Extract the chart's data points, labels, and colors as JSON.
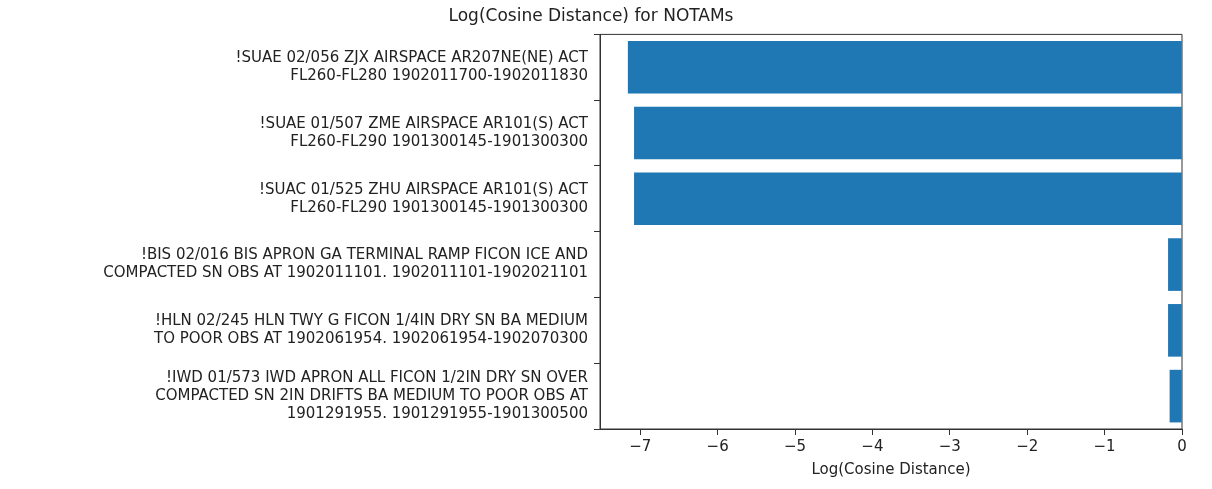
{
  "chart_data": {
    "type": "bar",
    "orientation": "horizontal",
    "title": "Log(Cosine Distance) for NOTAMs",
    "xlabel": "Log(Cosine Distance)",
    "categories": [
      "!SUAE 02/056 ZJX AIRSPACE AR207NE(NE) ACT\nFL260-FL280 1902011700-1902011830",
      "!SUAE 01/507 ZME AIRSPACE AR101(S) ACT\nFL260-FL290 1901300145-1901300300",
      "!SUAC 01/525 ZHU AIRSPACE AR101(S) ACT\nFL260-FL290 1901300145-1901300300",
      "!BIS 02/016 BIS APRON GA TERMINAL RAMP FICON ICE AND\nCOMPACTED SN OBS AT 1902011101. 1902011101-1902021101",
      "!HLN 02/245 HLN TWY G FICON 1/4IN DRY SN BA MEDIUM\nTO POOR OBS AT 1902061954. 1902061954-1902070300",
      "!IWD 01/573 IWD APRON ALL FICON 1/2IN DRY SN OVER\nCOMPACTED SN 2IN DRIFTS BA MEDIUM TO POOR OBS AT\n1901291955. 1901291955-1901300500"
    ],
    "values": [
      -7.16,
      -7.08,
      -7.08,
      -0.18,
      -0.18,
      -0.16
    ],
    "color": "#1f77b4",
    "xlim": [
      -7.52,
      0
    ],
    "xticks": [
      {
        "value": -7,
        "label": "−7"
      },
      {
        "value": -6,
        "label": "−6"
      },
      {
        "value": -5,
        "label": "−5"
      },
      {
        "value": -4,
        "label": "−4"
      },
      {
        "value": -3,
        "label": "−3"
      },
      {
        "value": -2,
        "label": "−2"
      },
      {
        "value": -1,
        "label": "−1"
      },
      0
    ]
  }
}
